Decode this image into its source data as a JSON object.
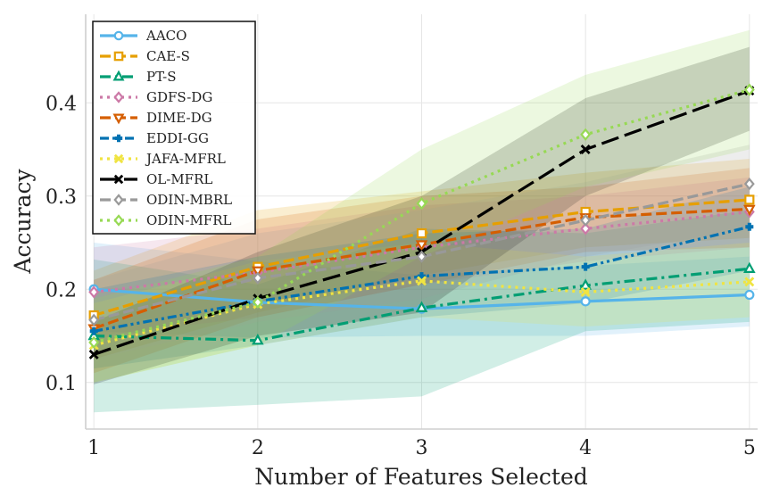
{
  "chart_data": {
    "type": "line",
    "title": "",
    "xlabel": "Number of Features Selected",
    "ylabel": "Accuracy",
    "x": [
      1,
      2,
      3,
      4,
      5
    ],
    "xlim": [
      0.95,
      5.05
    ],
    "ylim": [
      0.05,
      0.495
    ],
    "yticks": [
      0.1,
      0.2,
      0.3,
      0.4
    ],
    "yticks_labels": [
      "0.1",
      "0.2",
      "0.3",
      "0.4"
    ],
    "xticks_labels": [
      "1",
      "2",
      "3",
      "4",
      "5"
    ],
    "grid": true,
    "legend_position": "top-left",
    "series": [
      {
        "name": "AACO",
        "color": "#56B4E9",
        "dash": "solid",
        "marker": "circle",
        "values": [
          0.2,
          0.186,
          0.179,
          0.187,
          0.194
        ],
        "lower": [
          0.155,
          0.148,
          0.15,
          0.15,
          0.16
        ],
        "upper": [
          0.25,
          0.23,
          0.215,
          0.225,
          0.235
        ]
      },
      {
        "name": "CAE-S",
        "color": "#E69F00",
        "dash": "dashed",
        "marker": "square",
        "values": [
          0.172,
          0.224,
          0.26,
          0.283,
          0.296
        ],
        "lower": [
          0.125,
          0.175,
          0.215,
          0.245,
          0.255
        ],
        "upper": [
          0.22,
          0.285,
          0.305,
          0.325,
          0.34
        ]
      },
      {
        "name": "PT-S",
        "color": "#009E73",
        "dash": "dashdot",
        "marker": "triangle-up",
        "values": [
          0.15,
          0.145,
          0.18,
          0.204,
          0.222
        ],
        "lower": [
          0.068,
          0.076,
          0.085,
          0.155,
          0.165
        ],
        "upper": [
          0.232,
          0.205,
          0.265,
          0.26,
          0.285
        ]
      },
      {
        "name": "GDFS-DG",
        "color": "#CC79A7",
        "dash": "dotted",
        "marker": "diamond",
        "values": [
          0.197,
          0.218,
          0.245,
          0.265,
          0.283
        ],
        "lower": [
          0.15,
          0.17,
          0.205,
          0.23,
          0.245
        ],
        "upper": [
          0.245,
          0.265,
          0.29,
          0.3,
          0.32
        ]
      },
      {
        "name": "DIME-DG",
        "color": "#D55E00",
        "dash": "dashed",
        "marker": "triangle-down",
        "values": [
          0.158,
          0.22,
          0.248,
          0.277,
          0.286
        ],
        "lower": [
          0.11,
          0.17,
          0.205,
          0.24,
          0.245
        ],
        "upper": [
          0.21,
          0.275,
          0.3,
          0.31,
          0.33
        ]
      },
      {
        "name": "EDDI-GG",
        "color": "#0072B2",
        "dash": "dashdotdot",
        "marker": "plus",
        "values": [
          0.155,
          0.187,
          0.214,
          0.224,
          0.267
        ],
        "lower": [
          0.115,
          0.14,
          0.17,
          0.185,
          0.22
        ],
        "upper": [
          0.2,
          0.235,
          0.26,
          0.265,
          0.31
        ]
      },
      {
        "name": "JAFA-MFRL",
        "color": "#F0E442",
        "dash": "dotted",
        "marker": "x",
        "values": [
          0.14,
          0.184,
          0.209,
          0.197,
          0.208
        ],
        "lower": [
          0.1,
          0.14,
          0.17,
          0.16,
          0.17
        ],
        "upper": [
          0.185,
          0.23,
          0.25,
          0.235,
          0.25
        ]
      },
      {
        "name": "OL-MFRL",
        "color": "#000000",
        "dash": "longdash",
        "marker": "x",
        "values": [
          0.13,
          0.19,
          0.24,
          0.35,
          0.413
        ],
        "lower": [
          0.098,
          0.15,
          0.175,
          0.3,
          0.37
        ],
        "upper": [
          0.165,
          0.24,
          0.3,
          0.405,
          0.46
        ]
      },
      {
        "name": "ODIN-MBRL",
        "color": "#999999",
        "dash": "dashed",
        "marker": "diamond",
        "values": [
          0.167,
          0.212,
          0.235,
          0.274,
          0.313
        ],
        "lower": [
          0.125,
          0.165,
          0.19,
          0.235,
          0.265
        ],
        "upper": [
          0.21,
          0.26,
          0.285,
          0.315,
          0.355
        ]
      },
      {
        "name": "ODIN-MFRL",
        "color": "#97D954",
        "dash": "dotted",
        "marker": "diamond",
        "values": [
          0.143,
          0.186,
          0.292,
          0.366,
          0.414
        ],
        "lower": [
          0.1,
          0.14,
          0.235,
          0.31,
          0.35
        ],
        "upper": [
          0.19,
          0.235,
          0.35,
          0.43,
          0.478
        ]
      }
    ]
  }
}
